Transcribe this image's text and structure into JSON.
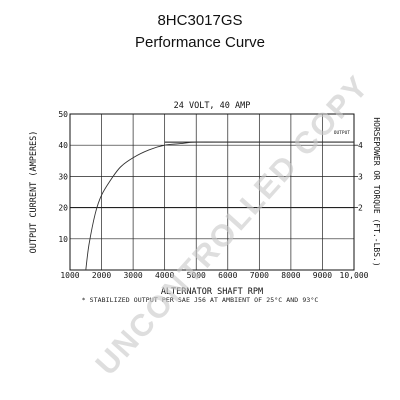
{
  "header": {
    "title": "8HC3017GS",
    "subtitle": "Performance Curve"
  },
  "chart_data": {
    "type": "line",
    "title": "24 VOLT, 40 AMP",
    "xlabel": "ALTERNATOR SHAFT RPM",
    "ylabel": "OUTPUT CURRENT (AMPERES)",
    "y2label": "HORSEPOWER OR TORQUE (FT.-LBS.)",
    "xlim": [
      1000,
      10000
    ],
    "ylim": [
      0,
      50
    ],
    "y2lim": [
      0,
      5
    ],
    "x_tick_labels": [
      "1000",
      "2000",
      "3000",
      "4000",
      "5000",
      "6000",
      "7000",
      "8000",
      "9000",
      "10,000"
    ],
    "y_tick_labels": [
      "10",
      "20",
      "30",
      "40",
      "50"
    ],
    "y2_tick_labels": [
      "2",
      "3",
      "4"
    ],
    "grid": true,
    "series": [
      {
        "name": "OUTPUT",
        "x": [
          1500,
          1600,
          1800,
          2000,
          2300,
          2600,
          3000,
          3500,
          4000,
          4500,
          5000,
          6000,
          7000,
          8000,
          9000,
          10000
        ],
        "y": [
          0,
          8,
          18,
          24,
          29,
          33,
          36,
          38.5,
          40,
          40.5,
          41,
          41,
          41,
          41,
          41,
          41
        ]
      }
    ],
    "reference_line": {
      "y": 41
    },
    "footnote": "* STABILIZED OUTPUT PER SAE J56 AT AMBIENT OF 25°C AND 93°C"
  },
  "watermark": {
    "text": "UNCONTROLLED COPY"
  }
}
